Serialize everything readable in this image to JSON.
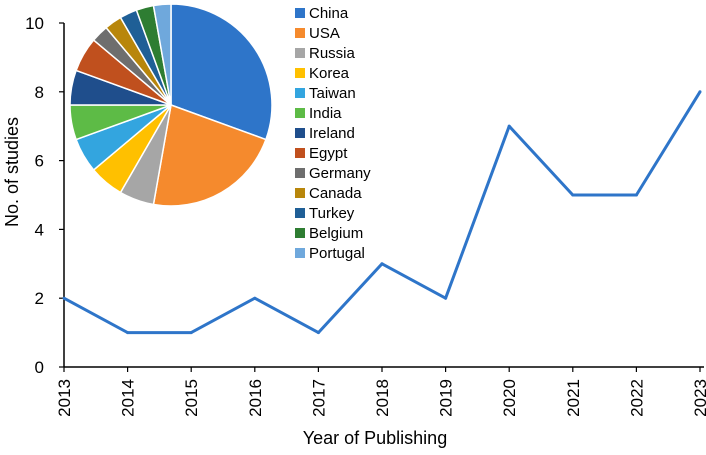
{
  "chart_data": [
    {
      "type": "line",
      "xlabel": "Year of Publishing",
      "ylabel": "No. of studies",
      "ylim": [
        0,
        10
      ],
      "yticks": [
        "0",
        "2",
        "4",
        "6",
        "8",
        "10"
      ],
      "categories": [
        "2013",
        "2014",
        "2015",
        "2016",
        "2017",
        "2018",
        "2019",
        "2020",
        "2021",
        "2022",
        "2023"
      ],
      "series": [
        {
          "values": [
            2,
            1,
            1,
            2,
            1,
            3,
            2,
            7,
            5,
            5,
            8
          ],
          "color": "#2e75c9"
        }
      ],
      "grid": false
    },
    {
      "type": "pie",
      "legend_position": "right",
      "slices": [
        {
          "label": "China",
          "value": 11,
          "color": "#2e75c9"
        },
        {
          "label": "USA",
          "value": 8,
          "color": "#f58a2d"
        },
        {
          "label": "Russia",
          "value": 2,
          "color": "#a6a6a6"
        },
        {
          "label": "Korea",
          "value": 2,
          "color": "#ffc000"
        },
        {
          "label": "Taiwan",
          "value": 2,
          "color": "#33a5df"
        },
        {
          "label": "India",
          "value": 2,
          "color": "#5dbb46"
        },
        {
          "label": "Ireland",
          "value": 2,
          "color": "#1f4e8c"
        },
        {
          "label": "Egypt",
          "value": 2,
          "color": "#c0501e"
        },
        {
          "label": "Germany",
          "value": 1,
          "color": "#6e6e6e"
        },
        {
          "label": "Canada",
          "value": 1,
          "color": "#b8860b"
        },
        {
          "label": "Turkey",
          "value": 1,
          "color": "#1f5f96"
        },
        {
          "label": "Belgium",
          "value": 1,
          "color": "#2e7d32"
        },
        {
          "label": "Portugal",
          "value": 1,
          "color": "#6fa8dc"
        }
      ]
    }
  ]
}
